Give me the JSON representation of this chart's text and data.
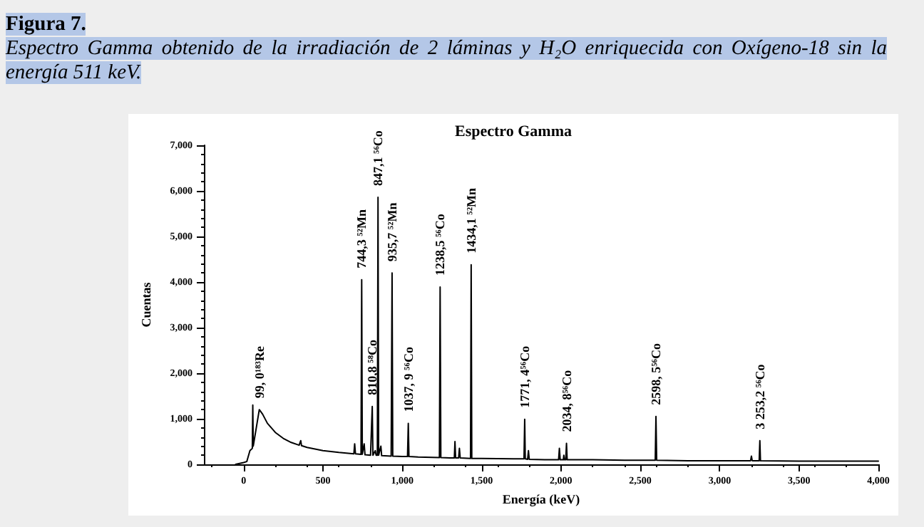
{
  "chart_data": {
    "type": "line",
    "title": "Espectro Gamma",
    "xlabel": "Energía (keV)",
    "ylabel": "Cuentas",
    "annotations": [
      "Figura 7.",
      "Espectro Gamma obtenido de la irradiación de 2 láminas y H₂O enriquecida con Oxígeno-18 sin la energía 511 keV.",
      {
        "text": "99, 0¹⁸³Re",
        "x": 99,
        "y": 1200
      },
      {
        "text": "744,3 ⁵²Mn",
        "x": 744.3,
        "y": 4050
      },
      {
        "text": "810,8 ⁵⁸Co",
        "x": 810.8,
        "y": 1270
      },
      {
        "text": "847,1 ⁵⁶Co",
        "x": 847.1,
        "y": 5860
      },
      {
        "text": "935,7 ⁵²Mn",
        "x": 935.7,
        "y": 4200
      },
      {
        "text": "1037, 9 ⁵⁶Co",
        "x": 1037.9,
        "y": 900
      },
      {
        "text": "1238,5 ⁵⁶Co",
        "x": 1238.5,
        "y": 3890
      },
      {
        "text": "1434,1 ⁵²Mn",
        "x": 1434.1,
        "y": 4380
      },
      {
        "text": "1771, 4⁵⁶Co",
        "x": 1771.4,
        "y": 990
      },
      {
        "text": "2034, 8⁵⁶Co",
        "x": 2034.8,
        "y": 460
      },
      {
        "text": "2598, 5⁵⁶Co",
        "x": 2598.5,
        "y": 1050
      },
      {
        "text": "3 253,2 ⁵⁶Co",
        "x": 3253.2,
        "y": 520
      }
    ],
    "x": [
      -50,
      0,
      20,
      40,
      55,
      58,
      61,
      80,
      99,
      120,
      150,
      200,
      250,
      300,
      350,
      360,
      365,
      400,
      500,
      600,
      695,
      700,
      705,
      740,
      744.3,
      748,
      760,
      765,
      800,
      805,
      810.8,
      815,
      830,
      835,
      843,
      847.1,
      851,
      865,
      870,
      930,
      935.7,
      940,
      1000,
      1033,
      1037.9,
      1042,
      1100,
      1234,
      1238.5,
      1243,
      1300,
      1328,
      1332,
      1336,
      1355,
      1360,
      1365,
      1430,
      1434.1,
      1438,
      1500,
      1700,
      1767,
      1771.4,
      1775,
      1790,
      1795,
      1800,
      1900,
      1985,
      1990,
      1995,
      2015,
      2018,
      2022,
      2030,
      2034.8,
      2039,
      2200,
      2400,
      2594,
      2598.5,
      2603,
      2800,
      3000,
      3195,
      3200,
      3205,
      3249,
      3253.2,
      3257,
      3500,
      4000
    ],
    "series": [
      {
        "color": "#000000",
        "values": [
          0,
          40,
          60,
          300,
          350,
          1300,
          400,
          800,
          1200,
          1100,
          900,
          700,
          570,
          480,
          420,
          520,
          410,
          370,
          300,
          260,
          230,
          450,
          230,
          220,
          4050,
          220,
          450,
          210,
          200,
          200,
          1270,
          200,
          300,
          200,
          200,
          5860,
          200,
          400,
          190,
          180,
          4200,
          180,
          170,
          170,
          900,
          170,
          160,
          150,
          3890,
          150,
          140,
          140,
          500,
          140,
          140,
          350,
          140,
          130,
          4380,
          130,
          130,
          120,
          120,
          990,
          120,
          110,
          300,
          110,
          100,
          100,
          350,
          100,
          100,
          200,
          100,
          100,
          460,
          100,
          100,
          90,
          90,
          1050,
          90,
          80,
          80,
          80,
          180,
          80,
          80,
          520,
          80,
          70,
          70
        ]
      }
    ],
    "xlim": [
      -250,
      4000
    ],
    "xticks": [
      0,
      500,
      {
        "value": 1000,
        "label": "1,000"
      },
      {
        "value": 1500,
        "label": "1,500"
      },
      {
        "value": 2000,
        "label": "2,000"
      },
      {
        "value": 2500,
        "label": "2,500"
      },
      {
        "value": 3000,
        "label": "3,000"
      },
      {
        "value": 3500,
        "label": "3,500"
      },
      {
        "value": 4000,
        "label": "4,000"
      }
    ],
    "ylim": [
      0,
      7000
    ],
    "yticks": [
      0,
      {
        "value": 1000,
        "label": "1,000"
      },
      {
        "value": 2000,
        "label": "2,000"
      },
      {
        "value": 3000,
        "label": "3,000"
      },
      {
        "value": 4000,
        "label": "4,000"
      },
      {
        "value": 5000,
        "label": "5,000"
      },
      {
        "value": 6000,
        "label": "6,000"
      },
      {
        "value": 7000,
        "label": "7,000"
      }
    ],
    "grid": false,
    "marker": "none",
    "line_style": "solid"
  }
}
